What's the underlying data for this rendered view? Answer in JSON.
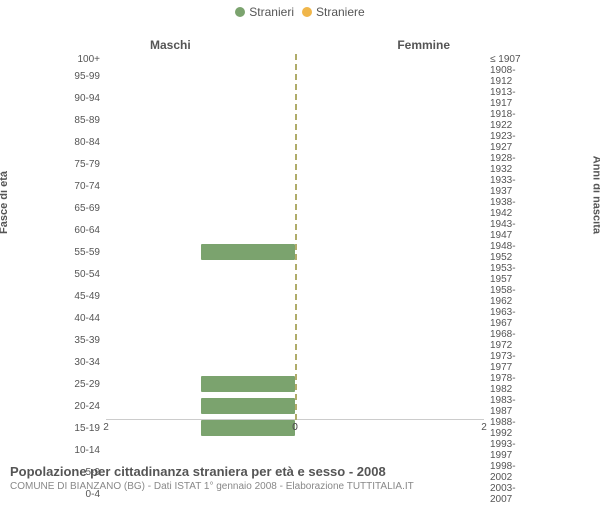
{
  "legend": {
    "male": {
      "label": "Stranieri",
      "color": "#7ba36e"
    },
    "female": {
      "label": "Straniere",
      "color": "#f0b64a"
    }
  },
  "chart": {
    "type": "population-pyramid",
    "background_color": "#ffffff",
    "center_line_color": "#b0ac6a",
    "tick_color": "#555555",
    "grid_color": "#cccccc",
    "label_fontsize": 10,
    "header": {
      "left": "Maschi",
      "right": "Femmine"
    },
    "y_title_left": "Fasce di età",
    "y_title_right": "Anni di nascita",
    "x_max": 2,
    "x_ticks_left": [
      2,
      0
    ],
    "x_ticks_right": [
      0,
      2
    ],
    "rows": [
      {
        "age": "100+",
        "birth": "≤ 1907",
        "m": 0,
        "f": 0
      },
      {
        "age": "95-99",
        "birth": "1908-1912",
        "m": 0,
        "f": 0
      },
      {
        "age": "90-94",
        "birth": "1913-1917",
        "m": 0,
        "f": 0
      },
      {
        "age": "85-89",
        "birth": "1918-1922",
        "m": 0,
        "f": 0
      },
      {
        "age": "80-84",
        "birth": "1923-1927",
        "m": 0,
        "f": 0
      },
      {
        "age": "75-79",
        "birth": "1928-1932",
        "m": 0,
        "f": 0
      },
      {
        "age": "70-74",
        "birth": "1933-1937",
        "m": 0,
        "f": 0
      },
      {
        "age": "65-69",
        "birth": "1938-1942",
        "m": 0,
        "f": 0
      },
      {
        "age": "60-64",
        "birth": "1943-1947",
        "m": 0,
        "f": 0
      },
      {
        "age": "55-59",
        "birth": "1948-1952",
        "m": 1,
        "f": 0
      },
      {
        "age": "50-54",
        "birth": "1953-1957",
        "m": 0,
        "f": 0
      },
      {
        "age": "45-49",
        "birth": "1958-1962",
        "m": 0,
        "f": 0
      },
      {
        "age": "40-44",
        "birth": "1963-1967",
        "m": 0,
        "f": 0
      },
      {
        "age": "35-39",
        "birth": "1968-1972",
        "m": 0,
        "f": 0
      },
      {
        "age": "30-34",
        "birth": "1973-1977",
        "m": 0,
        "f": 0
      },
      {
        "age": "25-29",
        "birth": "1978-1982",
        "m": 1,
        "f": 0
      },
      {
        "age": "20-24",
        "birth": "1983-1987",
        "m": 1,
        "f": 0
      },
      {
        "age": "15-19",
        "birth": "1988-1992",
        "m": 1,
        "f": 0
      },
      {
        "age": "10-14",
        "birth": "1993-1997",
        "m": 0,
        "f": 0
      },
      {
        "age": "5-9",
        "birth": "1998-2002",
        "m": 0,
        "f": 0
      },
      {
        "age": "0-4",
        "birth": "2003-2007",
        "m": 0,
        "f": 0
      }
    ]
  },
  "footer": {
    "title": "Popolazione per cittadinanza straniera per età e sesso - 2008",
    "sub": "COMUNE DI BIANZANO (BG) - Dati ISTAT 1° gennaio 2008 - Elaborazione TUTTITALIA.IT"
  }
}
